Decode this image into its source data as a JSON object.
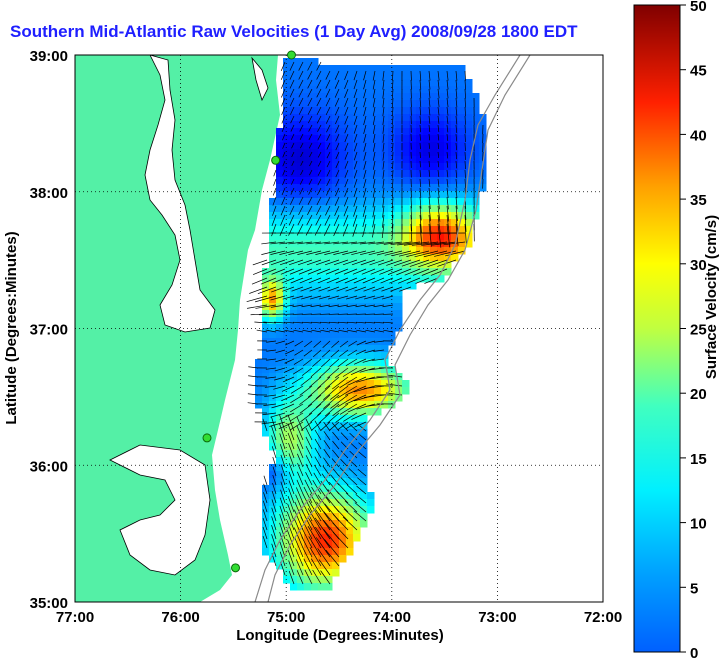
{
  "title": "Southern Mid-Atlantic Raw Velocities (1 Day Avg) 2008/09/28 1800 EDT",
  "map": {
    "type": "velocity-field",
    "xlabel": "Longitude (Degrees:Minutes)",
    "ylabel": "Latitude (Degrees:Minutes)",
    "xticks": [
      "77:00",
      "76:00",
      "75:00",
      "74:00",
      "73:00",
      "72:00"
    ],
    "yticks": [
      "39:00",
      "38:00",
      "37:00",
      "36:00",
      "35:00"
    ],
    "xlim": [
      -77,
      -72
    ],
    "ylim": [
      35,
      39
    ],
    "grid": true,
    "land_color": "#54f0a6",
    "stations": [
      {
        "lon": -74.95,
        "lat": 39.0
      },
      {
        "lon": -75.1,
        "lat": 38.23
      },
      {
        "lon": -75.75,
        "lat": 36.2
      },
      {
        "lon": -75.48,
        "lat": 35.25
      }
    ]
  },
  "colorbar": {
    "label": "Surface Velocity (cm/s)",
    "min": 0,
    "max": 50,
    "ticks": [
      "50",
      "45",
      "40",
      "35",
      "30",
      "25",
      "20",
      "15",
      "10",
      "5",
      "0"
    ]
  }
}
